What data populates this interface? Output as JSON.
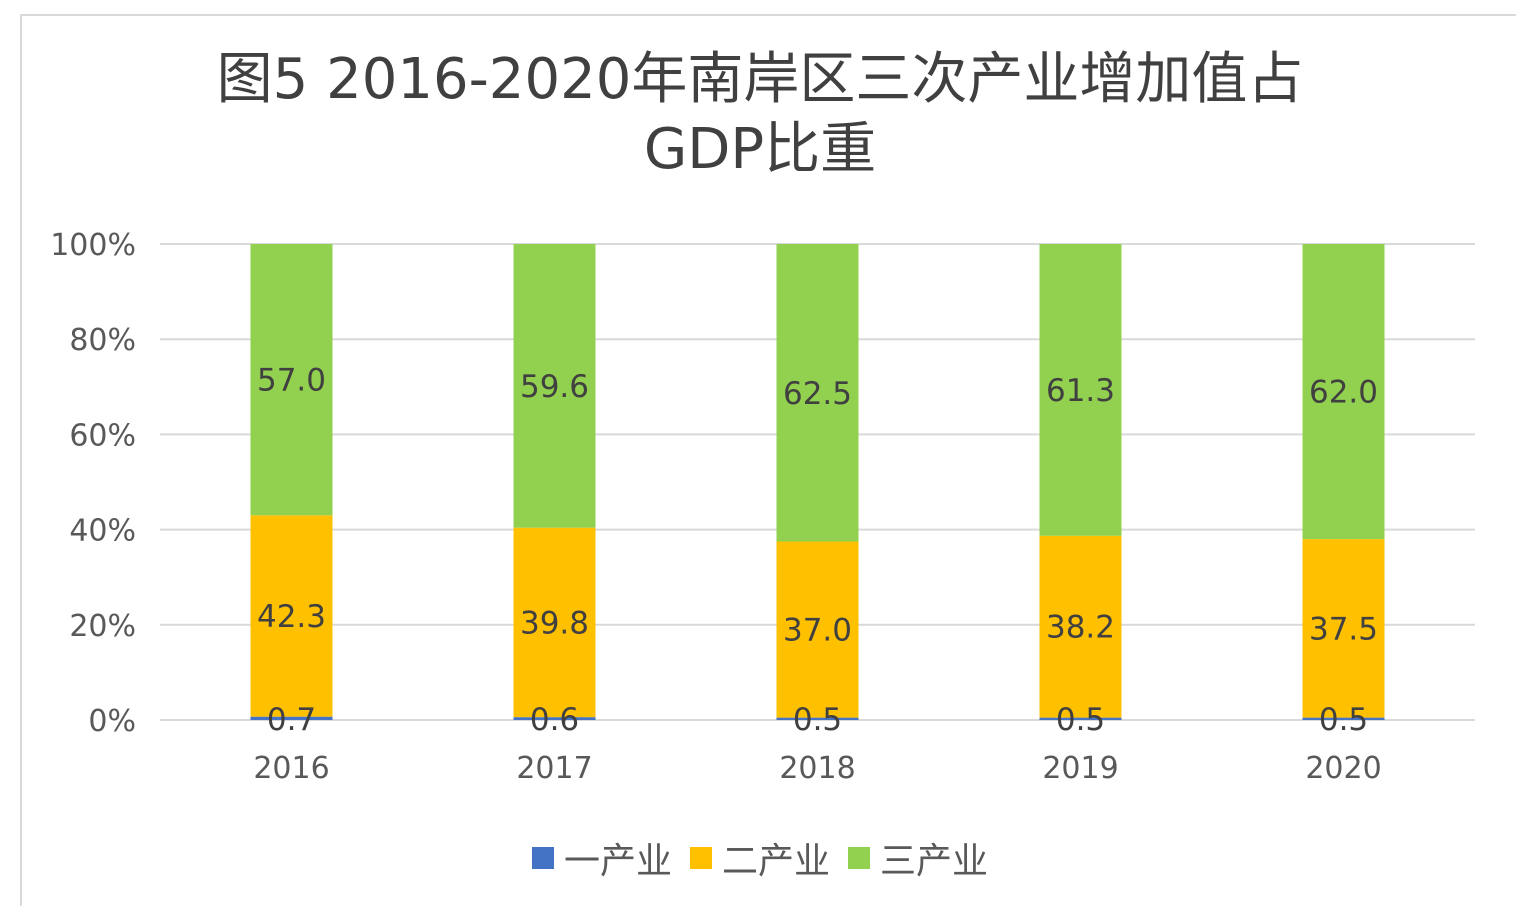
{
  "title_line1": "图5  2016-2020年南岸区三次产业增加值占",
  "title_line2": "GDP比重",
  "chart_data": {
    "type": "bar",
    "stacked": true,
    "percent_stacked": true,
    "categories": [
      "2016",
      "2017",
      "2018",
      "2019",
      "2020"
    ],
    "series": [
      {
        "name": "一产业",
        "color": "#4472c4",
        "values": [
          0.7,
          0.6,
          0.5,
          0.5,
          0.5
        ]
      },
      {
        "name": "二产业",
        "color": "#ffc000",
        "values": [
          42.3,
          39.8,
          37.0,
          38.2,
          37.5
        ]
      },
      {
        "name": "三产业",
        "color": "#92d050",
        "values": [
          57.0,
          59.6,
          62.5,
          61.3,
          62.0
        ]
      }
    ],
    "data_labels": {
      "一产业": [
        "0.7",
        "0.6",
        "0.5",
        "0.5",
        "0.5"
      ],
      "二产业": [
        "42.3",
        "39.8",
        "37.0",
        "38.2",
        "37.5"
      ],
      "三产业": [
        "57.0",
        "59.6",
        "62.5",
        "61.3",
        "62.0"
      ]
    },
    "y_ticks": [
      "0%",
      "20%",
      "40%",
      "60%",
      "80%",
      "100%"
    ],
    "ylim": [
      0,
      100
    ],
    "grid": true,
    "legend_position": "bottom"
  }
}
